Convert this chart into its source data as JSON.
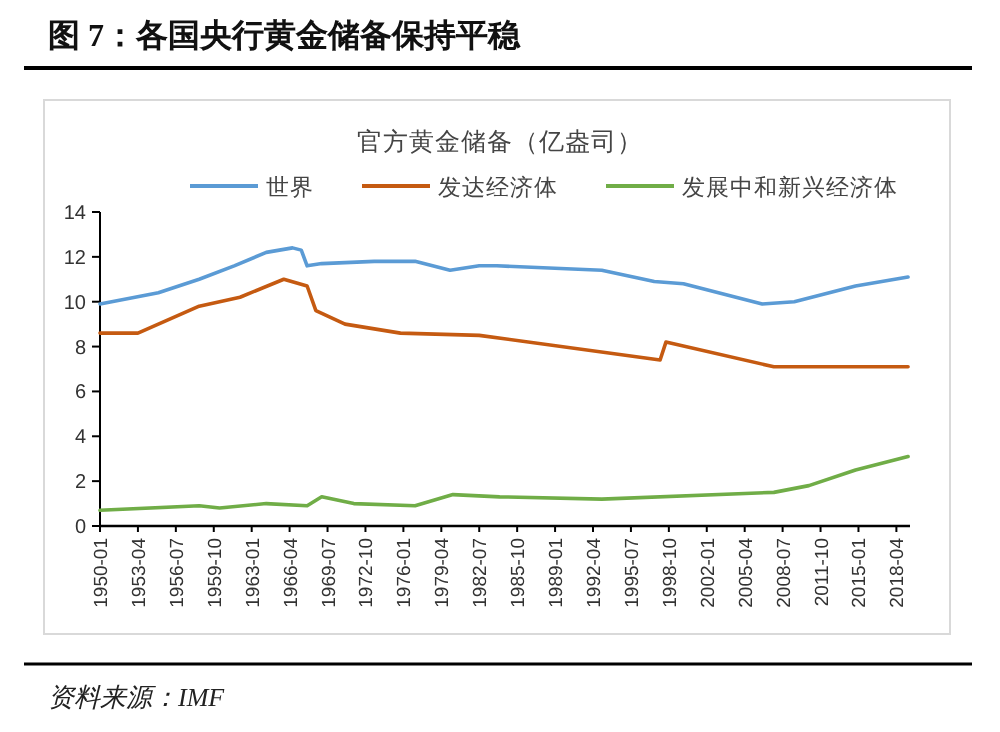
{
  "chart_data": {
    "type": "line",
    "title": "图 7：各国央行黄金储备保持平稳",
    "subtitle": "官方黄金储备（亿盎司）",
    "legend": "top",
    "xlim": [
      "1950-01",
      "2019-06"
    ],
    "xticks": [
      "1950-01",
      "1953-04",
      "1956-07",
      "1959-10",
      "1963-01",
      "1966-04",
      "1969-07",
      "1972-10",
      "1976-01",
      "1979-04",
      "1982-07",
      "1985-10",
      "1989-01",
      "1992-04",
      "1995-07",
      "1998-10",
      "2002-01",
      "2005-04",
      "2008-07",
      "2011-10",
      "2015-01",
      "2018-04"
    ],
    "ylim": [
      0,
      14
    ],
    "yticks": [
      0,
      2,
      4,
      6,
      8,
      10,
      12,
      14
    ],
    "series": [
      {
        "name": "世界",
        "color": "#5b9bd5",
        "x": [
          "1950-01",
          "1955-01",
          "1958-07",
          "1961-07",
          "1964-04",
          "1966-07",
          "1967-04",
          "1967-10",
          "1969-01",
          "1973-07",
          "1977-01",
          "1980-01",
          "1982-07",
          "1984-01",
          "1993-01",
          "1997-07",
          "2000-01",
          "2006-10",
          "2009-07",
          "2014-10",
          "2019-04"
        ],
        "values": [
          9.9,
          10.4,
          11.0,
          11.6,
          12.2,
          12.4,
          12.3,
          11.6,
          11.7,
          11.8,
          11.8,
          11.4,
          11.6,
          11.6,
          11.4,
          10.9,
          10.8,
          9.9,
          10.0,
          10.7,
          11.1
        ]
      },
      {
        "name": "发达经济体",
        "color": "#c55a11",
        "x": [
          "1950-01",
          "1953-04",
          "1958-07",
          "1962-01",
          "1965-10",
          "1967-10",
          "1968-07",
          "1971-01",
          "1975-10",
          "1982-07",
          "1998-01",
          "1998-07",
          "2007-10",
          "2019-04"
        ],
        "values": [
          8.6,
          8.6,
          9.8,
          10.2,
          11.0,
          10.7,
          9.6,
          9.0,
          8.6,
          8.5,
          7.4,
          8.2,
          7.1,
          7.1
        ]
      },
      {
        "name": "发展中和新兴经济体",
        "color": "#70ad47",
        "x": [
          "1950-01",
          "1958-07",
          "1960-04",
          "1964-04",
          "1967-10",
          "1969-01",
          "1971-10",
          "1977-01",
          "1980-04",
          "1984-04",
          "1993-01",
          "2007-10",
          "2010-10",
          "2014-10",
          "2019-04"
        ],
        "values": [
          0.7,
          0.9,
          0.8,
          1.0,
          0.9,
          1.3,
          1.0,
          0.9,
          1.4,
          1.3,
          1.2,
          1.5,
          1.8,
          2.5,
          3.1
        ]
      }
    ],
    "annotations": [
      "资料来源：IMF"
    ]
  }
}
